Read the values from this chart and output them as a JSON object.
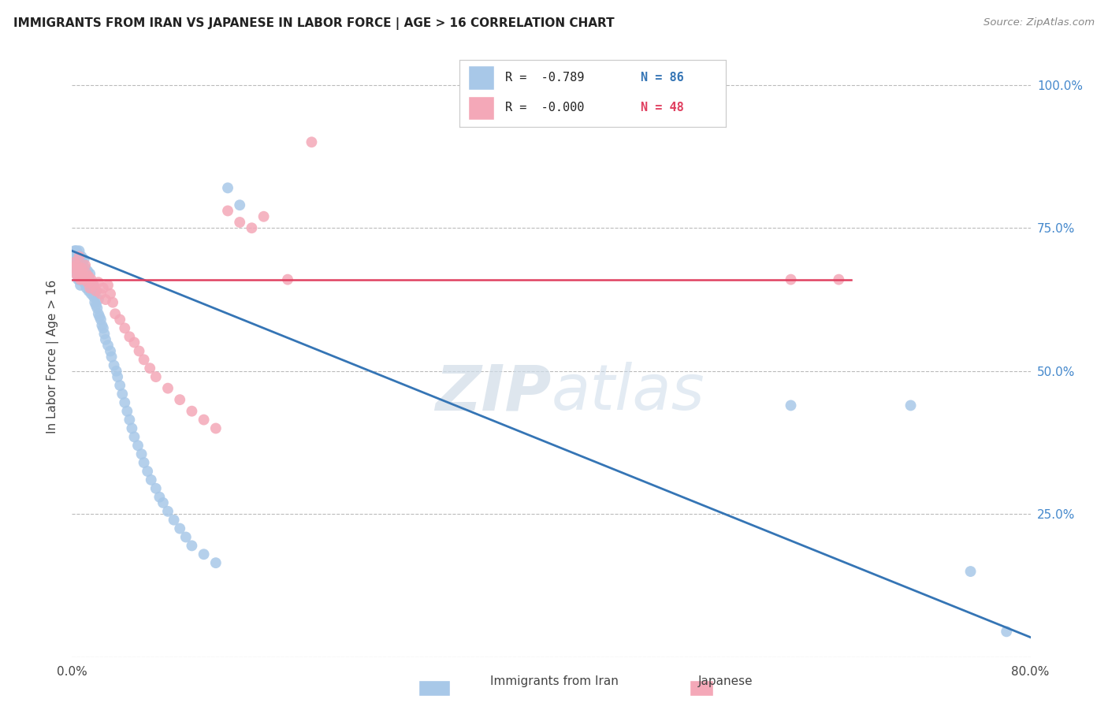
{
  "title": "IMMIGRANTS FROM IRAN VS JAPANESE IN LABOR FORCE | AGE > 16 CORRELATION CHART",
  "source": "Source: ZipAtlas.com",
  "ylabel": "In Labor Force | Age > 16",
  "xlim": [
    0.0,
    0.8
  ],
  "ylim": [
    0.0,
    1.05
  ],
  "iran_R": "-0.789",
  "iran_N": "86",
  "japanese_R": "-0.000",
  "japanese_N": "48",
  "iran_color": "#a8c8e8",
  "japan_color": "#f4a8b8",
  "iran_line_color": "#3575b5",
  "japan_line_color": "#e04060",
  "background_color": "#ffffff",
  "grid_color": "#bbbbbb",
  "watermark_zip": "ZIP",
  "watermark_atlas": "atlas",
  "iran_x": [
    0.001,
    0.002,
    0.002,
    0.003,
    0.003,
    0.004,
    0.004,
    0.004,
    0.005,
    0.005,
    0.005,
    0.006,
    0.006,
    0.006,
    0.007,
    0.007,
    0.007,
    0.008,
    0.008,
    0.008,
    0.009,
    0.009,
    0.01,
    0.01,
    0.01,
    0.011,
    0.011,
    0.012,
    0.012,
    0.013,
    0.013,
    0.014,
    0.014,
    0.015,
    0.015,
    0.016,
    0.016,
    0.017,
    0.018,
    0.018,
    0.019,
    0.02,
    0.02,
    0.021,
    0.022,
    0.022,
    0.023,
    0.024,
    0.025,
    0.026,
    0.027,
    0.028,
    0.03,
    0.032,
    0.033,
    0.035,
    0.037,
    0.038,
    0.04,
    0.042,
    0.044,
    0.046,
    0.048,
    0.05,
    0.052,
    0.055,
    0.058,
    0.06,
    0.063,
    0.066,
    0.07,
    0.073,
    0.076,
    0.08,
    0.085,
    0.09,
    0.095,
    0.1,
    0.11,
    0.12,
    0.13,
    0.14,
    0.6,
    0.7,
    0.75,
    0.78
  ],
  "iran_y": [
    0.68,
    0.7,
    0.71,
    0.695,
    0.71,
    0.67,
    0.69,
    0.71,
    0.66,
    0.68,
    0.7,
    0.66,
    0.685,
    0.71,
    0.65,
    0.67,
    0.69,
    0.66,
    0.68,
    0.7,
    0.67,
    0.69,
    0.655,
    0.675,
    0.695,
    0.66,
    0.68,
    0.645,
    0.67,
    0.655,
    0.675,
    0.64,
    0.66,
    0.65,
    0.67,
    0.635,
    0.655,
    0.645,
    0.63,
    0.65,
    0.62,
    0.615,
    0.64,
    0.61,
    0.6,
    0.625,
    0.595,
    0.59,
    0.58,
    0.575,
    0.565,
    0.555,
    0.545,
    0.535,
    0.525,
    0.51,
    0.5,
    0.49,
    0.475,
    0.46,
    0.445,
    0.43,
    0.415,
    0.4,
    0.385,
    0.37,
    0.355,
    0.34,
    0.325,
    0.31,
    0.295,
    0.28,
    0.27,
    0.255,
    0.24,
    0.225,
    0.21,
    0.195,
    0.18,
    0.165,
    0.82,
    0.79,
    0.44,
    0.44,
    0.15,
    0.045
  ],
  "japan_x": [
    0.001,
    0.002,
    0.003,
    0.004,
    0.005,
    0.006,
    0.006,
    0.007,
    0.008,
    0.009,
    0.01,
    0.011,
    0.012,
    0.013,
    0.014,
    0.015,
    0.016,
    0.018,
    0.02,
    0.022,
    0.024,
    0.026,
    0.028,
    0.03,
    0.032,
    0.034,
    0.036,
    0.04,
    0.044,
    0.048,
    0.052,
    0.056,
    0.06,
    0.065,
    0.07,
    0.08,
    0.09,
    0.1,
    0.11,
    0.12,
    0.13,
    0.14,
    0.15,
    0.16,
    0.18,
    0.2,
    0.6,
    0.64
  ],
  "japan_y": [
    0.68,
    0.69,
    0.67,
    0.685,
    0.665,
    0.675,
    0.7,
    0.66,
    0.68,
    0.67,
    0.66,
    0.685,
    0.67,
    0.655,
    0.665,
    0.645,
    0.66,
    0.65,
    0.64,
    0.655,
    0.635,
    0.645,
    0.625,
    0.65,
    0.635,
    0.62,
    0.6,
    0.59,
    0.575,
    0.56,
    0.55,
    0.535,
    0.52,
    0.505,
    0.49,
    0.47,
    0.45,
    0.43,
    0.415,
    0.4,
    0.78,
    0.76,
    0.75,
    0.77,
    0.66,
    0.9,
    0.66,
    0.66
  ],
  "iran_trend_x": [
    0.0,
    0.8
  ],
  "iran_trend_y": [
    0.71,
    0.035
  ],
  "japan_trend_x": [
    0.0,
    0.65
  ],
  "japan_trend_y": [
    0.66,
    0.66
  ]
}
